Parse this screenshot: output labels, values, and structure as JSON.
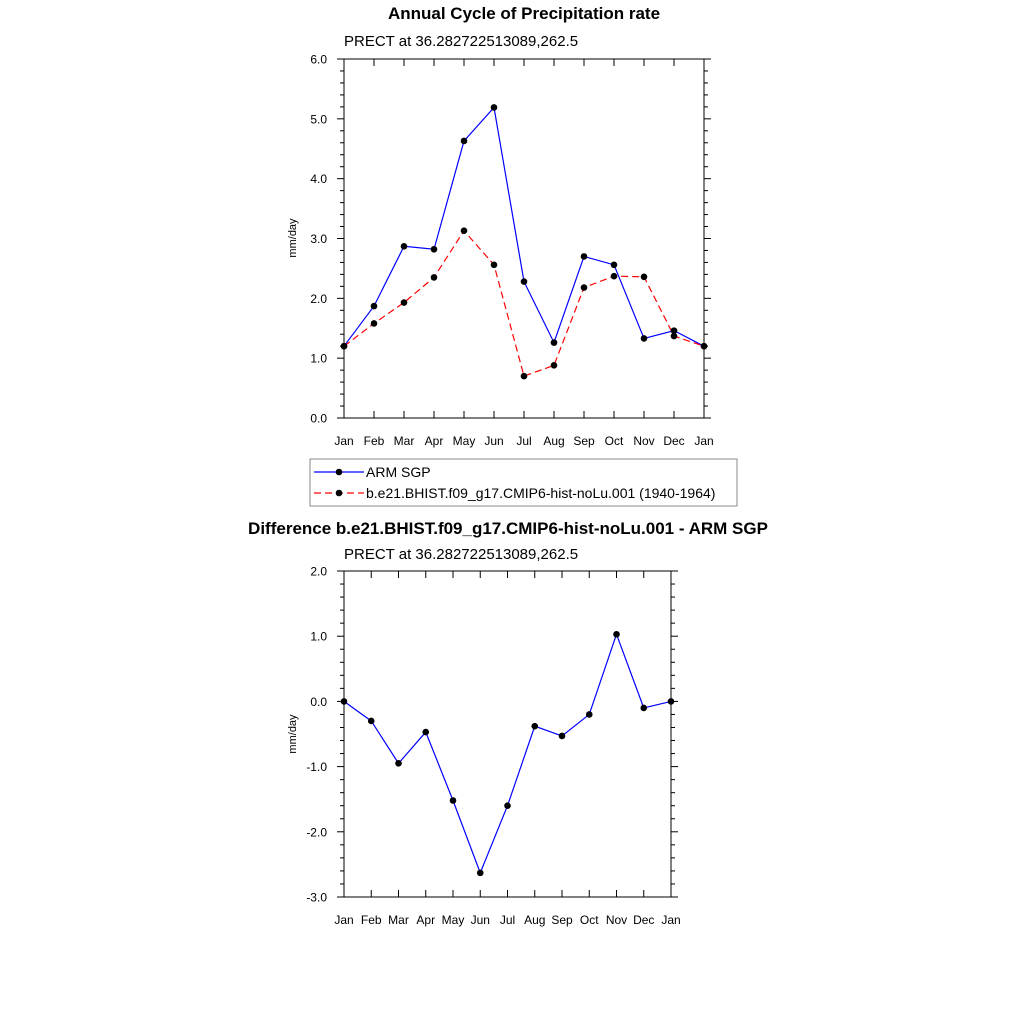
{
  "chart_data": [
    {
      "type": "line",
      "title": "Annual Cycle of Precipitation rate",
      "subtitle": "PRECT at 36.282722513089,262.5",
      "xlabel": "",
      "ylabel": "mm/day",
      "categories": [
        "Jan",
        "Feb",
        "Mar",
        "Apr",
        "May",
        "Jun",
        "Jul",
        "Aug",
        "Sep",
        "Oct",
        "Nov",
        "Dec",
        "Jan"
      ],
      "ylim": [
        0.0,
        6.0
      ],
      "yticks": [
        "0.0",
        "1.0",
        "2.0",
        "3.0",
        "4.0",
        "5.0",
        "6.0"
      ],
      "grid": false,
      "series": [
        {
          "name": "ARM SGP",
          "color": "#0000ff",
          "style": "solid",
          "values": [
            1.2,
            1.87,
            2.87,
            2.82,
            4.63,
            5.19,
            2.28,
            1.26,
            2.7,
            2.56,
            1.33,
            1.46,
            1.2
          ]
        },
        {
          "name": "b.e21.BHIST.f09_g17.CMIP6-hist-noLu.001 (1940-1964)",
          "color": "#ff0000",
          "style": "dashed",
          "values": [
            1.2,
            1.58,
            1.93,
            2.35,
            3.13,
            2.56,
            0.7,
            0.88,
            2.18,
            2.37,
            2.36,
            1.37,
            1.2
          ]
        }
      ],
      "legend": {
        "position": "bottom",
        "entries": [
          "ARM SGP",
          "b.e21.BHIST.f09_g17.CMIP6-hist-noLu.001 (1940-1964)"
        ]
      }
    },
    {
      "type": "line",
      "title": "Difference b.e21.BHIST.f09_g17.CMIP6-hist-noLu.001 - ARM SGP",
      "subtitle": "PRECT at 36.282722513089,262.5",
      "xlabel": "",
      "ylabel": "mm/day",
      "categories": [
        "Jan",
        "Feb",
        "Mar",
        "Apr",
        "May",
        "Jun",
        "Jul",
        "Aug",
        "Sep",
        "Oct",
        "Nov",
        "Dec",
        "Jan"
      ],
      "ylim": [
        -3.0,
        2.0
      ],
      "yticks": [
        "-3.0",
        "-2.0",
        "-1.0",
        "0.0",
        "1.0",
        "2.0"
      ],
      "grid": false,
      "series": [
        {
          "name": "Difference",
          "color": "#0000ff",
          "style": "solid",
          "values": [
            0.0,
            -0.3,
            -0.95,
            -0.47,
            -1.52,
            -2.63,
            -1.6,
            -0.38,
            -0.53,
            -0.2,
            1.03,
            -0.1,
            0.0
          ]
        }
      ]
    }
  ]
}
